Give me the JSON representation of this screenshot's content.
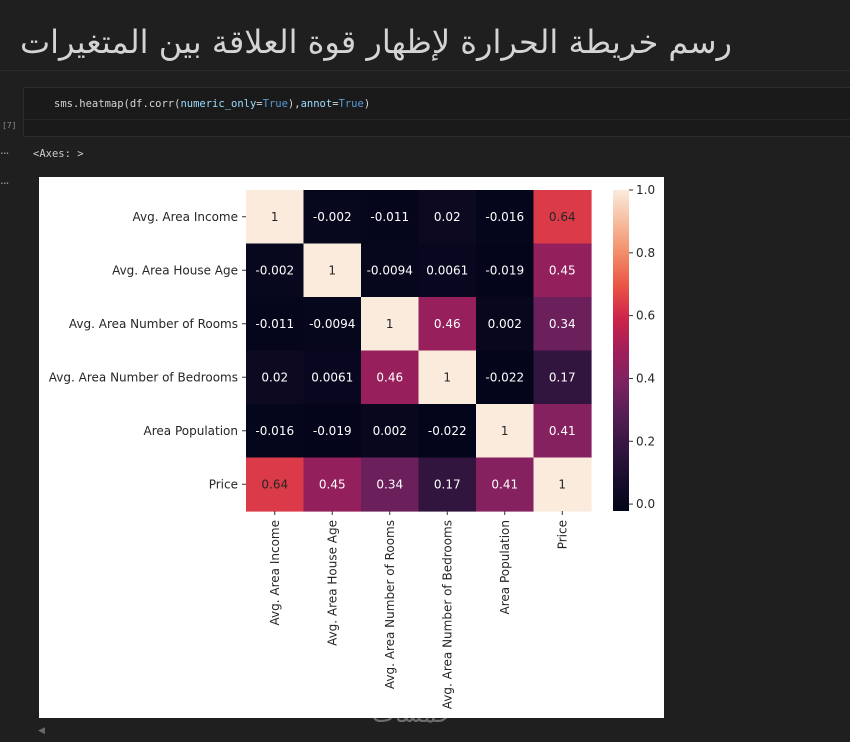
{
  "markdown": {
    "title": "رسم خريطة الحرارة لإظهار قوة العلاقة بين المتغيرات"
  },
  "code_cell": {
    "execution_count": "[7]",
    "tokens": {
      "call": "sms.heatmap(df.corr(",
      "param1": "numeric_only",
      "eq1": "=",
      "val1": "True",
      "sep": "),",
      "param2": "annot",
      "eq2": "=",
      "val2": "True",
      "end": ")"
    }
  },
  "output": {
    "text": "<Axes: >",
    "ellipsis": "..."
  },
  "watermark": "خمسات",
  "colors": {
    "background": "#1f1f1f",
    "code_keyword": "#569cd6",
    "code_param": "#9cdcfe"
  },
  "chart_data": {
    "type": "heatmap",
    "row_labels": [
      "Avg. Area Income",
      "Avg. Area House Age",
      "Avg. Area Number of Rooms",
      "Avg. Area Number of Bedrooms",
      "Area Population",
      "Price"
    ],
    "col_labels": [
      "Avg. Area Income",
      "Avg. Area House Age",
      "Avg. Area Number of Rooms",
      "Avg. Area Number of Bedrooms",
      "Area Population",
      "Price"
    ],
    "values": [
      [
        1,
        -0.002,
        -0.011,
        0.02,
        -0.016,
        0.64
      ],
      [
        -0.002,
        1,
        -0.0094,
        0.0061,
        -0.019,
        0.45
      ],
      [
        -0.011,
        -0.0094,
        1,
        0.46,
        0.002,
        0.34
      ],
      [
        0.02,
        0.0061,
        0.46,
        1,
        -0.022,
        0.17
      ],
      [
        -0.016,
        -0.019,
        0.002,
        -0.022,
        1,
        0.41
      ],
      [
        0.64,
        0.45,
        0.34,
        0.17,
        0.41,
        1
      ]
    ],
    "annotations": [
      [
        "1",
        "-0.002",
        "-0.011",
        "0.02",
        "-0.016",
        "0.64"
      ],
      [
        "-0.002",
        "1",
        "-0.0094",
        "0.0061",
        "-0.019",
        "0.45"
      ],
      [
        "-0.011",
        "-0.0094",
        "1",
        "0.46",
        "0.002",
        "0.34"
      ],
      [
        "0.02",
        "0.0061",
        "0.46",
        "1",
        "-0.022",
        "0.17"
      ],
      [
        "-0.016",
        "-0.019",
        "0.002",
        "-0.022",
        "1",
        "0.41"
      ],
      [
        "0.64",
        "0.45",
        "0.34",
        "0.17",
        "0.41",
        "1"
      ]
    ],
    "colorbar": {
      "range": [
        -0.022,
        1.0
      ],
      "ticks": [
        0.0,
        0.2,
        0.4,
        0.6,
        0.8,
        1.0
      ],
      "tick_labels": [
        "0.0",
        "0.2",
        "0.4",
        "0.6",
        "0.8",
        "1.0"
      ],
      "colormap": "rocket"
    }
  }
}
